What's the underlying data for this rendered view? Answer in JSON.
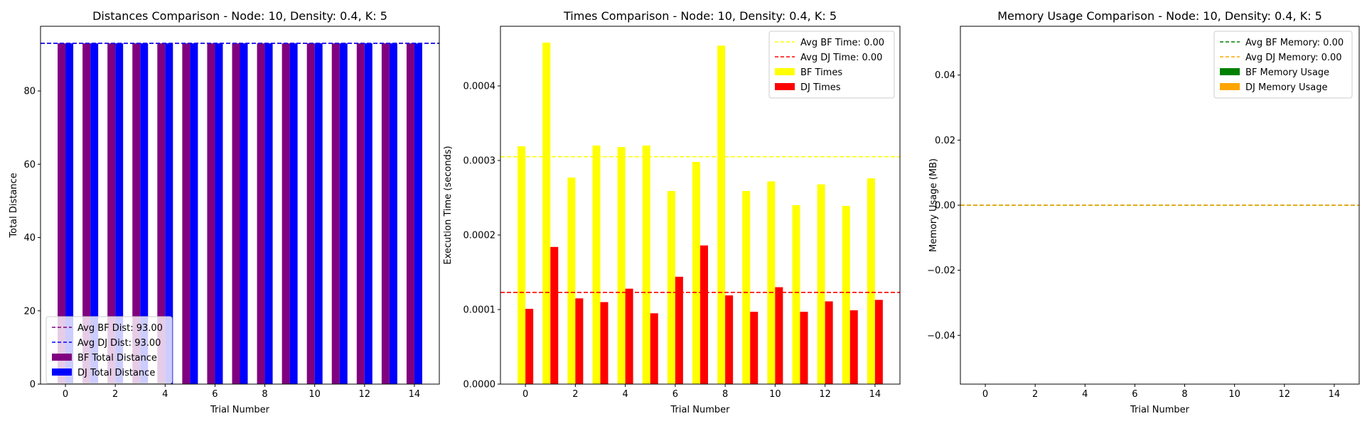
{
  "chart_data": [
    {
      "type": "bar",
      "title": "Distances Comparison - Node: 10, Density: 0.4, K: 5",
      "xlabel": "Trial Number",
      "ylabel": "Total Distance",
      "x": [
        0,
        1,
        2,
        3,
        4,
        5,
        6,
        7,
        8,
        9,
        10,
        11,
        12,
        13,
        14
      ],
      "xticks": [
        0,
        2,
        4,
        6,
        8,
        10,
        12,
        14
      ],
      "xlim": [
        -1,
        15
      ],
      "ylim": [
        0,
        97.65
      ],
      "yticks": [
        0,
        20,
        40,
        60,
        80
      ],
      "series": [
        {
          "name": "BF Total Distance",
          "color": "#800080",
          "values": [
            93,
            93,
            93,
            93,
            93,
            93,
            93,
            93,
            93,
            93,
            93,
            93,
            93,
            93,
            93
          ]
        },
        {
          "name": "DJ Total Distance",
          "color": "#0000ff",
          "values": [
            93,
            93,
            93,
            93,
            93,
            93,
            93,
            93,
            93,
            93,
            93,
            93,
            93,
            93,
            93
          ]
        }
      ],
      "avg_lines": [
        {
          "name": "Avg BF Dist: 93.00",
          "color": "#800080",
          "value": 93
        },
        {
          "name": "Avg DJ Dist: 93.00",
          "color": "#0000ff",
          "value": 93
        }
      ],
      "legend_position": "lower-left",
      "grid": false
    },
    {
      "type": "bar",
      "title": "Times Comparison - Node: 10, Density: 0.4, K: 5",
      "xlabel": "Trial Number",
      "ylabel": "Execution Time (seconds)",
      "x": [
        0,
        1,
        2,
        3,
        4,
        5,
        6,
        7,
        8,
        9,
        10,
        11,
        12,
        13,
        14
      ],
      "xticks": [
        0,
        2,
        4,
        6,
        8,
        10,
        12,
        14
      ],
      "xlim": [
        -1,
        15
      ],
      "ylim": [
        0,
        0.00048
      ],
      "yticks": [
        "0.0000",
        "0.0001",
        "0.0002",
        "0.0003",
        "0.0004"
      ],
      "series": [
        {
          "name": "BF Times",
          "color": "#ffff00",
          "values": [
            0.000319,
            0.000458,
            0.000277,
            0.00032,
            0.000318,
            0.00032,
            0.000259,
            0.000298,
            0.000454,
            0.000259,
            0.000272,
            0.00024,
            0.000268,
            0.000239,
            0.000276
          ]
        },
        {
          "name": "DJ Times",
          "color": "#ff0000",
          "values": [
            0.000101,
            0.000184,
            0.000115,
            0.00011,
            0.000128,
            9.5e-05,
            0.000144,
            0.000186,
            0.000119,
            9.7e-05,
            0.00013,
            9.7e-05,
            0.000111,
            9.9e-05,
            0.000113
          ]
        }
      ],
      "avg_lines": [
        {
          "name": "Avg BF Time: 0.00",
          "color": "#ffff00",
          "value": 0.000305
        },
        {
          "name": "Avg DJ Time: 0.00",
          "color": "#ff0000",
          "value": 0.000123
        }
      ],
      "legend_position": "upper-right",
      "grid": false
    },
    {
      "type": "bar",
      "title": "Memory Usage Comparison - Node: 10, Density: 0.4, K: 5",
      "xlabel": "Trial Number",
      "ylabel": "Memory Usage (MB)",
      "x": [
        0,
        1,
        2,
        3,
        4,
        5,
        6,
        7,
        8,
        9,
        10,
        11,
        12,
        13,
        14
      ],
      "xticks": [
        0,
        2,
        4,
        6,
        8,
        10,
        12,
        14
      ],
      "xlim": [
        -1,
        15
      ],
      "ylim": [
        -0.055,
        0.055
      ],
      "yticks": [
        "−0.04",
        "−0.02",
        "0.00",
        "0.02",
        "0.04"
      ],
      "series": [
        {
          "name": "BF Memory Usage",
          "color": "#008000",
          "values": [
            0,
            0,
            0,
            0,
            0,
            0,
            0,
            0,
            0,
            0,
            0,
            0,
            0,
            0,
            0
          ]
        },
        {
          "name": "DJ Memory Usage",
          "color": "#ffa500",
          "values": [
            0,
            0,
            0,
            0,
            0,
            0,
            0,
            0,
            0,
            0,
            0,
            0,
            0,
            0,
            0
          ]
        }
      ],
      "avg_lines": [
        {
          "name": "Avg BF Memory: 0.00",
          "color": "#008000",
          "value": 0
        },
        {
          "name": "Avg DJ Memory: 0.00",
          "color": "#ffa500",
          "value": 0
        }
      ],
      "legend_position": "upper-right",
      "grid": false
    }
  ]
}
